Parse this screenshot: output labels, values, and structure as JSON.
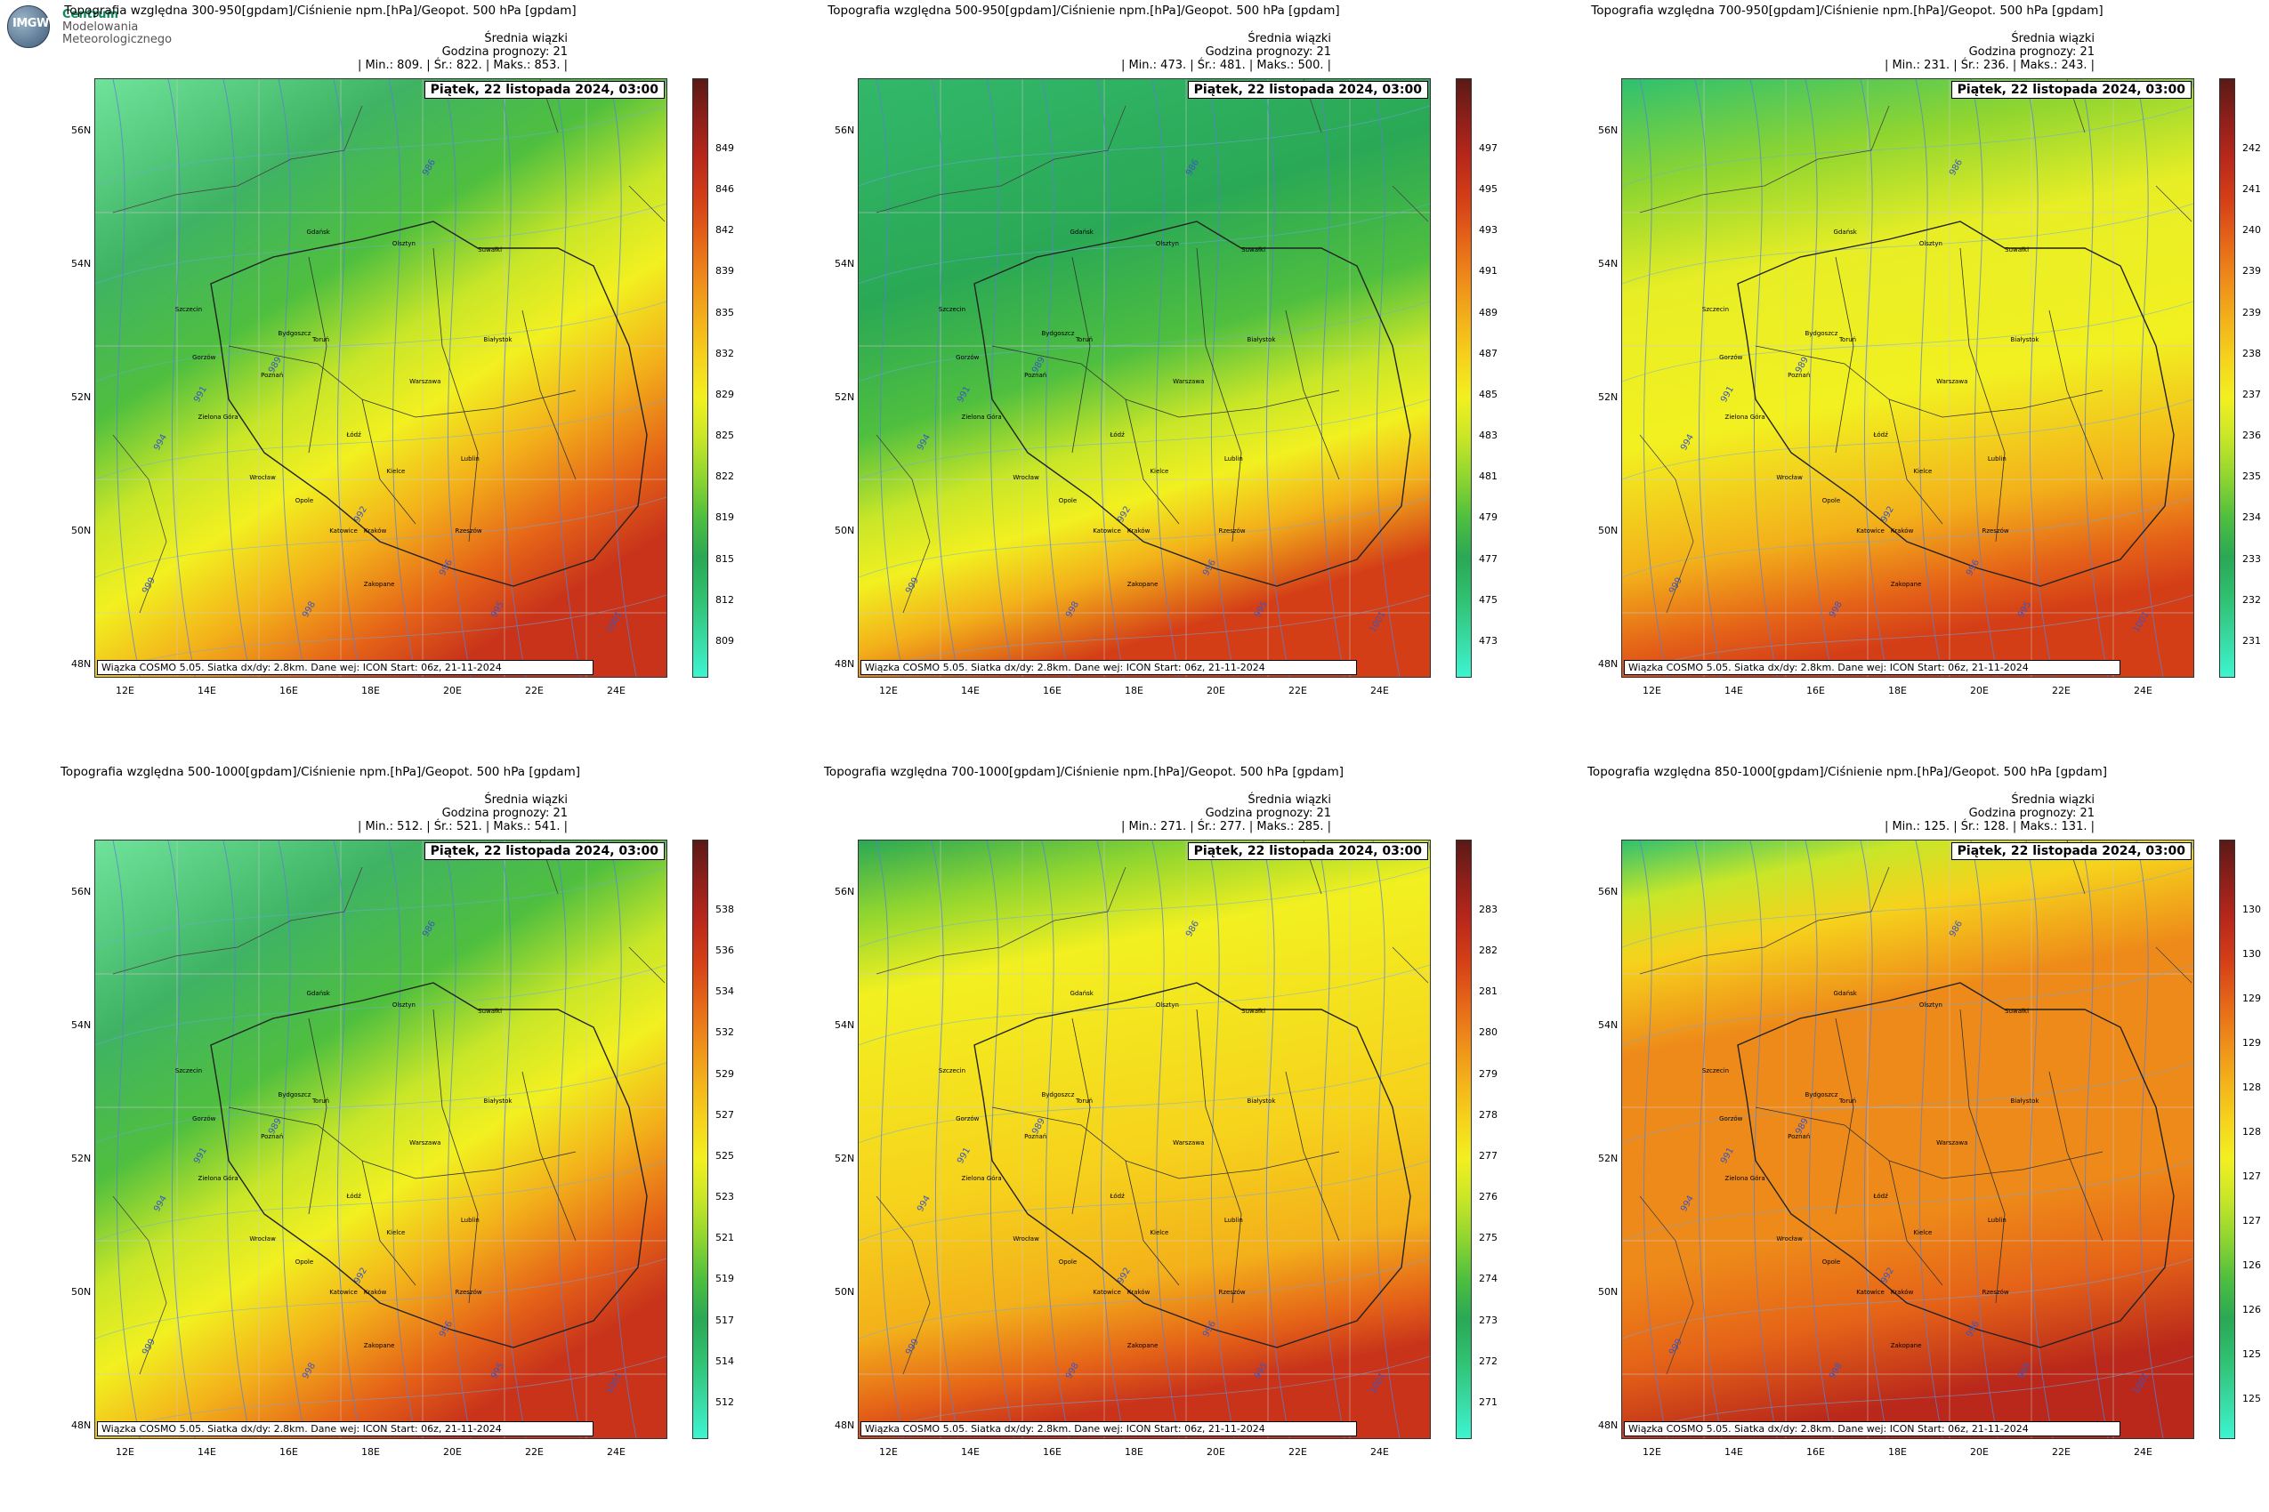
{
  "logo": {
    "lines": [
      "Centrum",
      "Modelowania",
      "Meteorologicznego"
    ],
    "short": "IMGW"
  },
  "common": {
    "mean_label": "Średnia wiązki",
    "forecast_hour": "Godzina prognozy: 21",
    "date": "Piątek, 22 listopada 2024, 03:00",
    "credit": "Wiązka COSMO 5.05. Siatka dx/dy: 2.8km. Dane wej: ICON Start: 06z, 21-11-2024",
    "lat_labels": [
      "56N",
      "54N",
      "52N",
      "50N",
      "48N"
    ],
    "lon_labels": [
      "12E",
      "14E",
      "16E",
      "18E",
      "20E",
      "22E",
      "24E"
    ]
  },
  "panels": [
    {
      "title": "Topografia względna 300-950[gpdam]/Ciśnienie npm.[hPa]/Geopot. 500 hPa [gpdam]",
      "stats": "| Min.:   809. | Śr.:   822. | Maks.:   853. |",
      "colorbar": [
        "849",
        "846",
        "842",
        "839",
        "835",
        "832",
        "829",
        "825",
        "822",
        "819",
        "815",
        "812",
        "809"
      ],
      "pattern": "diag"
    },
    {
      "title": "Topografia względna 500-950[gpdam]/Ciśnienie npm.[hPa]/Geopot. 500 hPa [gpdam]",
      "stats": "| Min.:   473. | Śr.:   481. | Maks.:   500. |",
      "colorbar": [
        "497",
        "495",
        "493",
        "491",
        "489",
        "487",
        "485",
        "483",
        "481",
        "479",
        "477",
        "475",
        "473"
      ],
      "pattern": "south"
    },
    {
      "title": "Topografia względna 700-950[gpdam]/Ciśnienie npm.[hPa]/Geopot. 500 hPa [gpdam]",
      "stats": "| Min.:   231. | Śr.:   236. | Maks.:   243. |",
      "colorbar": [
        "242",
        "241",
        "240",
        "239",
        "239",
        "238",
        "237",
        "236",
        "235",
        "234",
        "233",
        "232",
        "231"
      ],
      "pattern": "yellow"
    },
    {
      "title": "Topografia względna 500-1000[gpdam]/Ciśnienie npm.[hPa]/Geopot. 500 hPa [gpdam]",
      "stats": "| Min.:   512. | Śr.:   521. | Maks.:   541. |",
      "colorbar": [
        "538",
        "536",
        "534",
        "532",
        "529",
        "527",
        "525",
        "523",
        "521",
        "519",
        "517",
        "514",
        "512"
      ],
      "pattern": "diag"
    },
    {
      "title": "Topografia względna 700-1000[gpdam]/Ciśnienie npm.[hPa]/Geopot. 500 hPa [gpdam]",
      "stats": "| Min.:   271. | Śr.:   277. | Maks.:   285. |",
      "colorbar": [
        "283",
        "282",
        "281",
        "280",
        "279",
        "278",
        "277",
        "276",
        "275",
        "274",
        "273",
        "272",
        "271"
      ],
      "pattern": "yellow2"
    },
    {
      "title": "Topografia względna 850-1000[gpdam]/Ciśnienie npm.[hPa]/Geopot. 500 hPa [gpdam]",
      "stats": "| Min.:   125. | Śr.:   128. | Maks.:   131. |",
      "colorbar": [
        "130",
        "130",
        "129",
        "129",
        "128",
        "128",
        "127",
        "127",
        "126",
        "126",
        "125",
        "125"
      ],
      "pattern": "orange"
    }
  ],
  "cities": [
    "Gdańsk",
    "Olsztyn",
    "Suwałki",
    "Szczecin",
    "Bydgoszcz",
    "Toruń",
    "Białystok",
    "Gorzów",
    "Poznań",
    "Warszawa",
    "Zielona Góra",
    "Łódź",
    "Lublin",
    "Wrocław",
    "Kielce",
    "Opole",
    "Katowice",
    "Kraków",
    "Rzeszów",
    "Zakopane"
  ],
  "isobar_labels": [
    "986",
    "989",
    "991",
    "992",
    "994",
    "995",
    "996",
    "998",
    "999",
    "1001"
  ],
  "colors": {
    "ramp": [
      "#3df5d0",
      "#38d8a0",
      "#2fc070",
      "#2aa855",
      "#4fbf3f",
      "#8fd530",
      "#c8e628",
      "#f2f020",
      "#f6d21c",
      "#f3b01a",
      "#ee8a19",
      "#e56318",
      "#d43e17",
      "#b9281a",
      "#8e1f1a",
      "#5a1a16"
    ]
  }
}
